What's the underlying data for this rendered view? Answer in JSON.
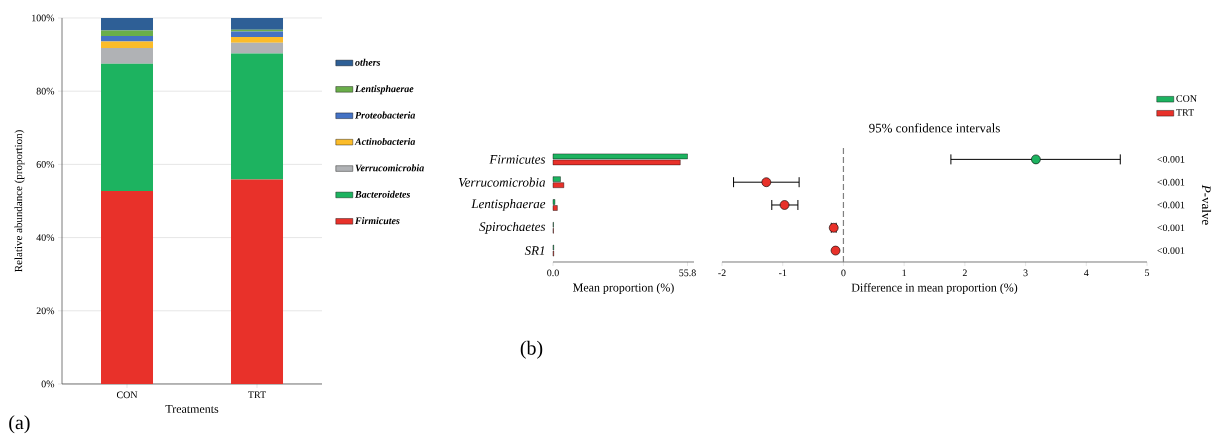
{
  "chart_data": [
    {
      "type": "bar",
      "stacked": true,
      "categories": [
        "CON",
        "TRT"
      ],
      "xlabel": "Treatments",
      "ylabel": "Relative abundance (proportion)",
      "ylim": [
        0,
        100
      ],
      "yticks": [
        {
          "value": 0,
          "label": "0%"
        },
        {
          "value": 20,
          "label": "20%"
        },
        {
          "value": 40,
          "label": "40%"
        },
        {
          "value": 60,
          "label": "60%"
        },
        {
          "value": 80,
          "label": "80%"
        },
        {
          "value": 100,
          "label": "100%"
        }
      ],
      "grid": "y",
      "legend": "right",
      "annotations": [
        "(a)"
      ],
      "series": [
        {
          "name": "Firmicutes",
          "color": "#e8312a",
          "values": [
            52.7,
            55.9
          ]
        },
        {
          "name": "Bacteroidetes",
          "color": "#1db360",
          "values": [
            34.8,
            34.4
          ]
        },
        {
          "name": "Verrucomicrobia",
          "color": "#b0b2b5",
          "values": [
            4.3,
            2.9
          ]
        },
        {
          "name": "Actinobacteria",
          "color": "#fbbc2a",
          "values": [
            1.8,
            1.6
          ]
        },
        {
          "name": "Proteobacteria",
          "color": "#4472c4",
          "values": [
            1.5,
            1.5
          ]
        },
        {
          "name": "Lentisphaerae",
          "color": "#6aae4a",
          "values": [
            1.5,
            0.5
          ]
        },
        {
          "name": "others",
          "color": "#2e5f96",
          "values": [
            3.4,
            3.2
          ]
        }
      ]
    },
    {
      "type": "bar",
      "orientation": "horizontal",
      "categories": [
        "Firmicutes",
        "Verrucomicrobia",
        "Lentisphaerae",
        "Spirochaetes",
        "SR1"
      ],
      "xlabel": "Mean proportion (%)",
      "xlim": [
        0,
        58.5
      ],
      "xticks": [
        {
          "value": 0,
          "label": "0.0"
        },
        55.8
      ],
      "annotations": [
        "(b)"
      ],
      "series": [
        {
          "color": "#1db360",
          "values": [
            55.8,
            3.1,
            0.8,
            0.2,
            0.3
          ]
        },
        {
          "color": "#e8312a",
          "values": [
            52.8,
            4.5,
            1.8,
            0.2,
            0.3
          ]
        }
      ]
    },
    {
      "type": "scatter",
      "orientation": "horizontal",
      "title": "95% confidence intervals",
      "categories": [
        null,
        null,
        null,
        null,
        null
      ],
      "xlabel": "Difference in mean proportion (%)",
      "y2label": "*P*-valve",
      "xlim": [
        -2,
        5
      ],
      "xticks": [
        -2,
        -1,
        0,
        1,
        2,
        3,
        4,
        5
      ],
      "tick_labels": "x",
      "legend": "top right",
      "marker": "circle",
      "ref_lines": [
        {
          "axis": "x",
          "value": 0,
          "color": "#808080",
          "line_style": "dashed"
        }
      ],
      "annotations": [
        "<0.001",
        "<0.001",
        "<0.001",
        "<0.001",
        "<0.001"
      ],
      "series": [
        {
          "name": "CON",
          "color": "#1db360",
          "values": [
            3.17,
            null,
            null,
            null,
            null
          ],
          "errors": [
            [
              1.77,
              4.56
            ],
            null,
            null,
            null,
            null
          ]
        },
        {
          "name": "TRT",
          "color": "#e8312a",
          "values": [
            null,
            -1.27,
            -0.97,
            -0.16,
            -0.13
          ],
          "errors": [
            null,
            [
              -1.81,
              -0.73
            ],
            [
              -1.18,
              -0.75
            ],
            [
              -0.2,
              -0.12
            ],
            null
          ]
        }
      ]
    }
  ]
}
